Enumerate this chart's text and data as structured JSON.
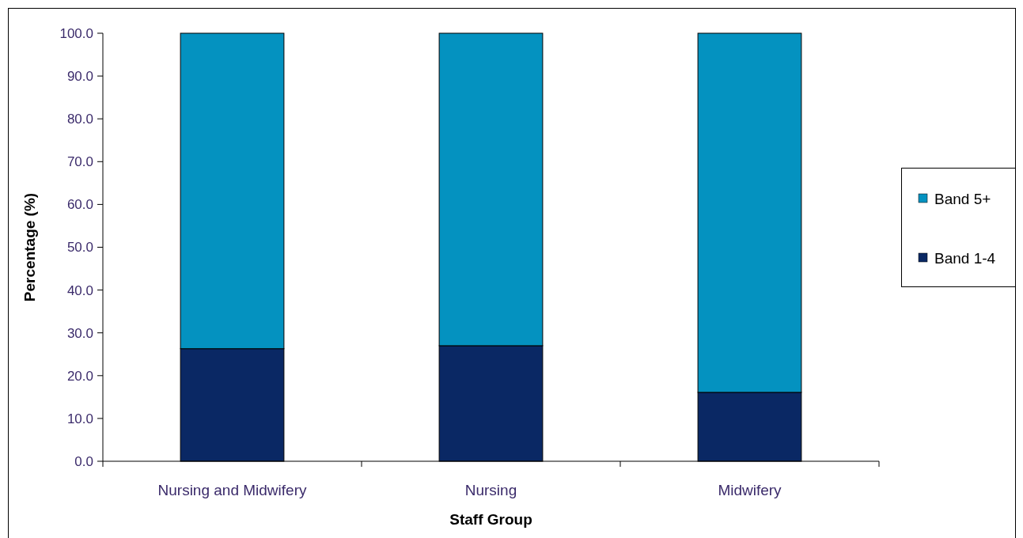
{
  "chart_data": {
    "type": "bar",
    "stacked": true,
    "xlabel": "Staff Group",
    "ylabel": "Percentage (%)",
    "categories": [
      "Nursing and Midwifery",
      "Nursing",
      "Midwifery"
    ],
    "series": [
      {
        "name": "Band 1-4",
        "color": "#0a2864",
        "values": [
          26.3,
          27.0,
          16.1
        ]
      },
      {
        "name": "Band 5+",
        "color": "#0492c0",
        "values": [
          73.7,
          73.0,
          83.9
        ]
      }
    ],
    "ylim": [
      0,
      100
    ],
    "yticks": [
      {
        "value": 0,
        "label": "0.0"
      },
      {
        "value": 10,
        "label": "10.0"
      },
      {
        "value": 20,
        "label": "20.0"
      },
      {
        "value": 30,
        "label": "30.0"
      },
      {
        "value": 40,
        "label": "40.0"
      },
      {
        "value": 50,
        "label": "50.0"
      },
      {
        "value": 60,
        "label": "60.0"
      },
      {
        "value": 70,
        "label": "70.0"
      },
      {
        "value": 80,
        "label": "80.0"
      },
      {
        "value": 90,
        "label": "90.0"
      },
      {
        "value": 100,
        "label": "100.0"
      }
    ],
    "legend": "right"
  }
}
